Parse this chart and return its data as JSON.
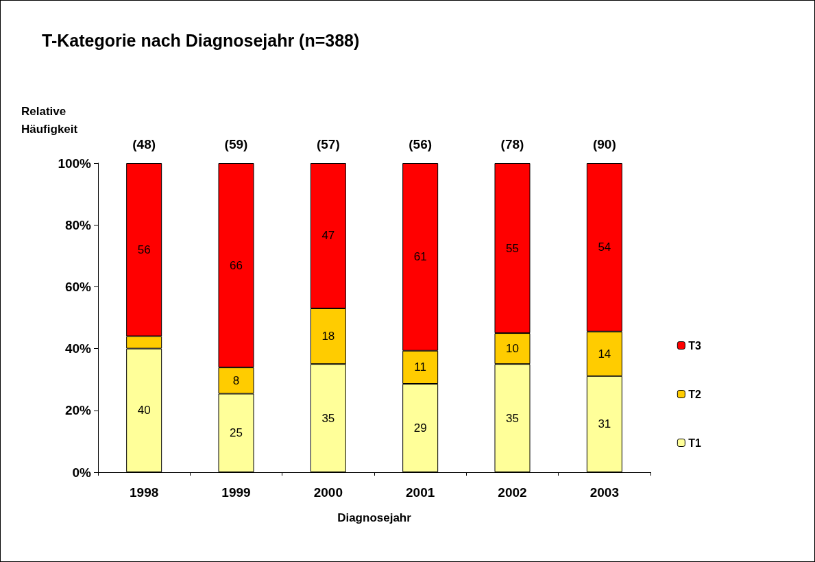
{
  "chart_data": {
    "type": "bar",
    "title": "T-Kategorie nach Diagnosejahr (n=388)",
    "xlabel": "Diagnosejahr",
    "ylabel": "Relative Häufigkeit",
    "categories": [
      "1998",
      "1999",
      "2000",
      "2001",
      "2002",
      "2003"
    ],
    "stacked": true,
    "series": [
      {
        "name": "T1",
        "color": "#ffff99",
        "values": [
          40,
          25.4,
          35,
          28.6,
          35,
          31.1
        ],
        "value_labels": [
          "40",
          "25",
          "35",
          "29",
          "35",
          "31"
        ]
      },
      {
        "name": "T2",
        "color": "#ffcc00",
        "values": [
          4,
          8.5,
          18,
          10.7,
          10,
          14.4
        ],
        "value_labels": [
          null,
          "8",
          "18",
          "11",
          "10",
          "14"
        ]
      },
      {
        "name": "T3",
        "color": "#ff0000",
        "values": [
          56,
          66.1,
          47,
          60.7,
          55,
          54.5
        ],
        "value_labels": [
          "56",
          "66",
          "47",
          "61",
          "55",
          "54"
        ]
      }
    ],
    "annotations": [
      {
        "text": "(48)",
        "x": "1998",
        "y": 100
      },
      {
        "text": "(59)",
        "x": "1999",
        "y": 100
      },
      {
        "text": "(57)",
        "x": "2000",
        "y": 100
      },
      {
        "text": "(56)",
        "x": "2001",
        "y": 100
      },
      {
        "text": "(78)",
        "x": "2002",
        "y": 100
      },
      {
        "text": "(90)",
        "x": "2003",
        "y": 100
      }
    ],
    "ylim": [
      0,
      100
    ],
    "yticks": [
      {
        "value": 0,
        "label": "0%"
      },
      {
        "value": 20,
        "label": "20%"
      },
      {
        "value": 40,
        "label": "40%"
      },
      {
        "value": 60,
        "label": "60%"
      },
      {
        "value": 80,
        "label": "80%"
      },
      {
        "value": 100,
        "label": "100%"
      }
    ],
    "grid": false,
    "legend": "right"
  }
}
